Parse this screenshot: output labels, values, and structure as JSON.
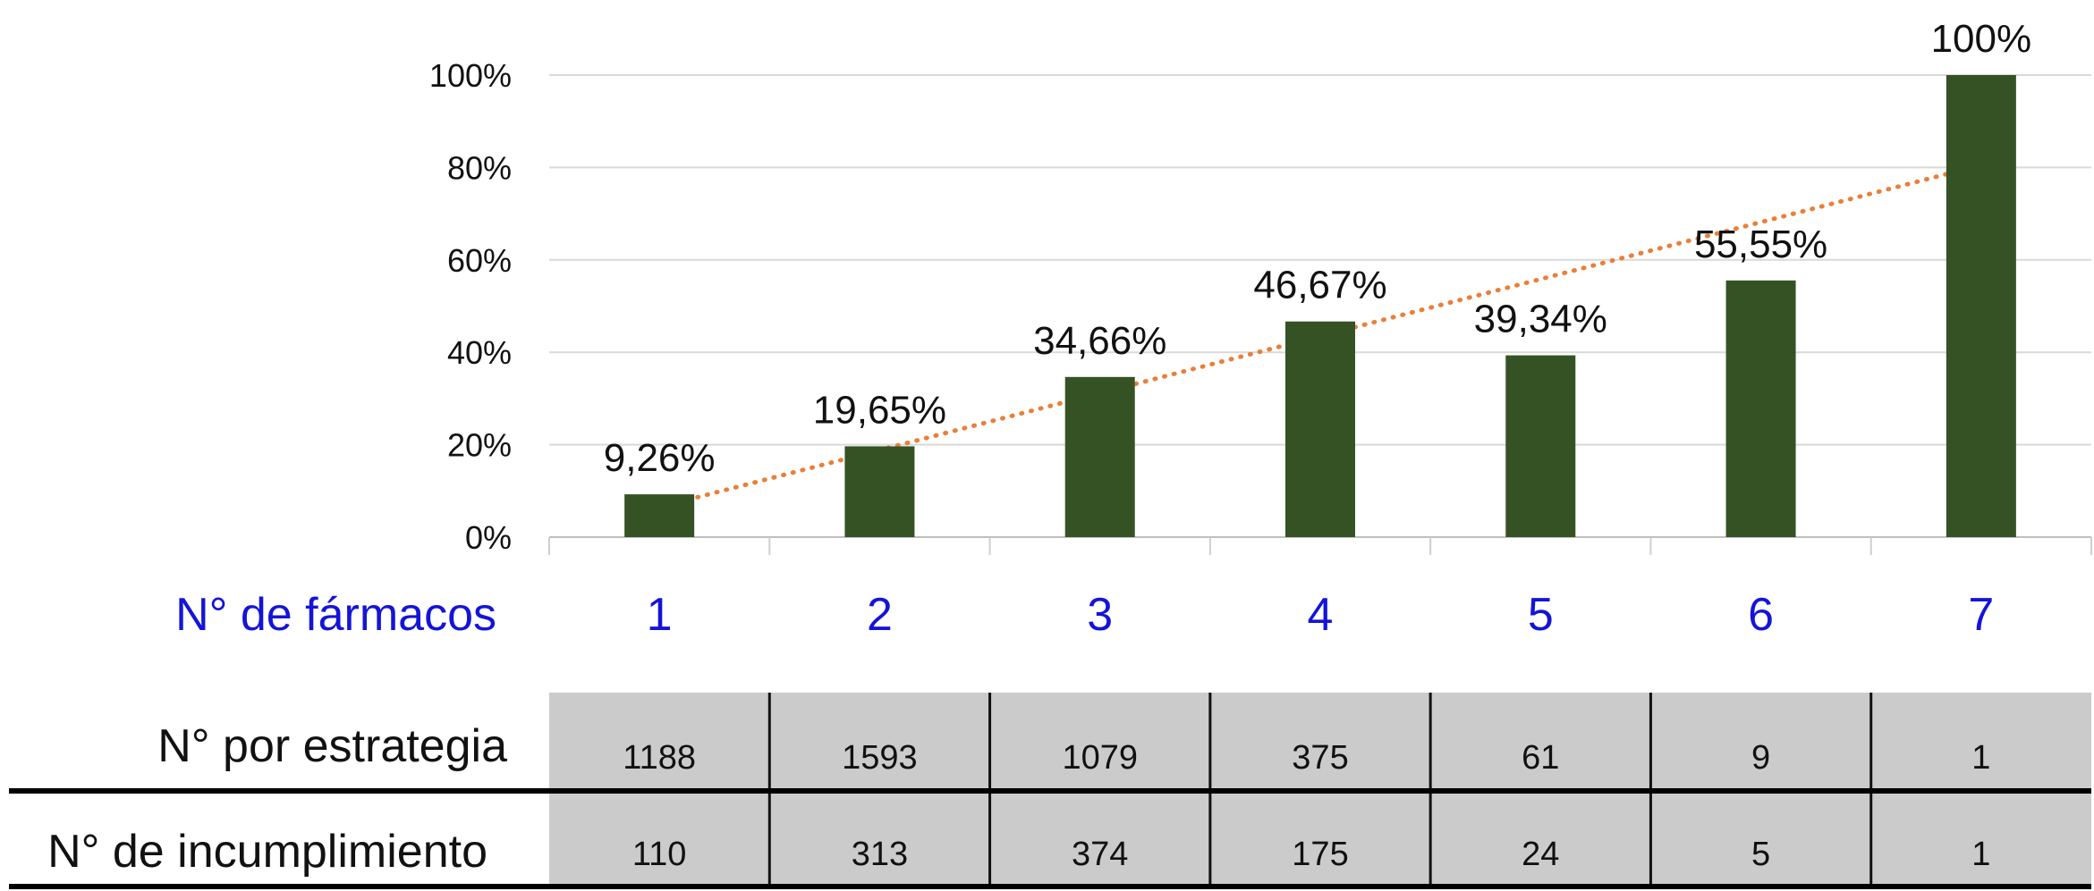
{
  "chart_data": {
    "type": "bar",
    "title": "",
    "xlabel": "N° de fármacos",
    "ylabel": "",
    "ylim": [
      0,
      100
    ],
    "yticks": [
      "0%",
      "20%",
      "40%",
      "60%",
      "80%",
      "100%"
    ],
    "categories": [
      "1",
      "2",
      "3",
      "4",
      "5",
      "6",
      "7"
    ],
    "values": [
      9.26,
      19.65,
      34.66,
      46.67,
      39.34,
      55.55,
      100
    ],
    "data_labels": [
      "9,26%",
      "19,65%",
      "34,66%",
      "46,67%",
      "39,34%",
      "55,55%",
      "100%"
    ],
    "trendline": {
      "type": "linear",
      "style": "dotted",
      "start": 6.5,
      "end": 80.5
    },
    "grid": true,
    "colors": {
      "bar": "#355224",
      "trend": "#e8803a",
      "axis_text": "#1414d8",
      "table_fill": "#cbcbcb"
    },
    "table": {
      "rows": [
        {
          "label": "N° por estrategia",
          "values": [
            "1188",
            "1593",
            "1079",
            "375",
            "61",
            "9",
            "1"
          ]
        },
        {
          "label": "N° de incumplimiento",
          "values": [
            "110",
            "313",
            "374",
            "175",
            "24",
            "5",
            "1"
          ]
        }
      ]
    }
  }
}
